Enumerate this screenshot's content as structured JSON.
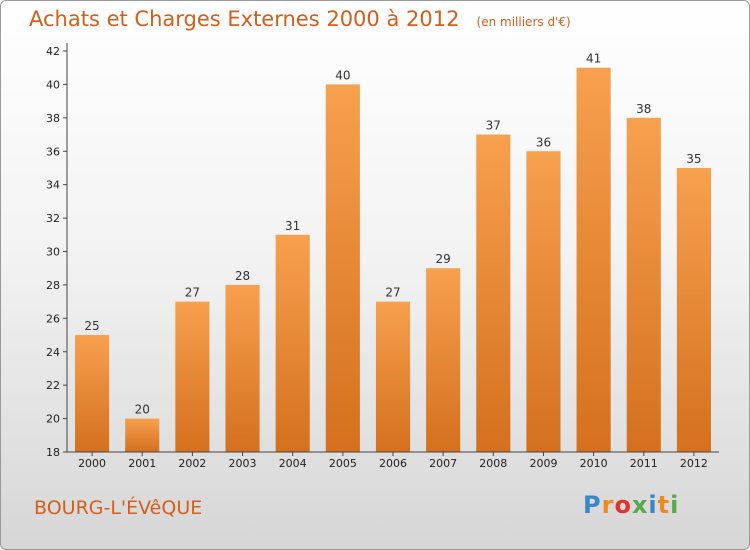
{
  "chart_data": {
    "type": "bar",
    "title": "Achats et Charges Externes 2000 à 2012",
    "subtitle": "(en milliers d'€)",
    "categories": [
      "2000",
      "2001",
      "2002",
      "2003",
      "2004",
      "2005",
      "2006",
      "2007",
      "2008",
      "2009",
      "2010",
      "2011",
      "2012"
    ],
    "values": [
      25,
      20,
      27,
      28,
      31,
      40,
      27,
      29,
      37,
      36,
      41,
      38,
      35
    ],
    "yticks": [
      18,
      20,
      22,
      24,
      26,
      28,
      30,
      32,
      34,
      36,
      38,
      40,
      42
    ],
    "ylim": [
      18,
      42
    ],
    "grid": false,
    "bar_color_top": "#f7a04e",
    "bar_color_bottom": "#d4701e"
  },
  "footer": {
    "town": "BOURG-L'ÉVêQUE",
    "logo": {
      "letters": [
        "P",
        "r",
        "o",
        "x",
        "i",
        "t",
        "i"
      ],
      "colors": [
        "#3a86c8",
        "#f08a1c",
        "#e0342a",
        "#5aa84a",
        "#3a86c8",
        "#f08a1c",
        "#5aa84a"
      ]
    }
  }
}
